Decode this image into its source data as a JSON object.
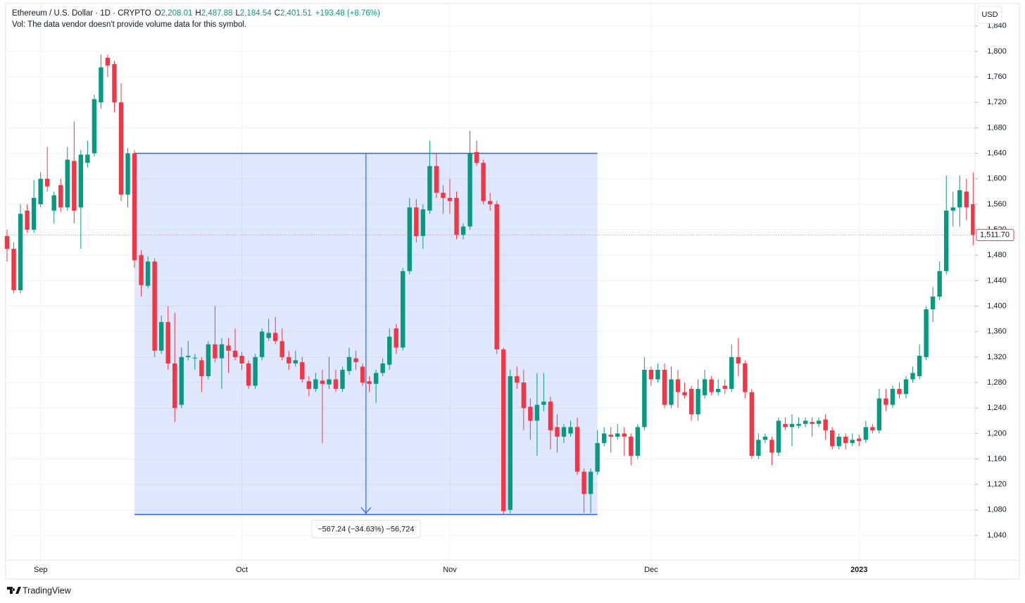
{
  "chart_data": {
    "type": "candlestick",
    "legend": {
      "symbol": "Ethereum / U.S. Dollar · 1D · CRYPTO",
      "o_label": "O",
      "o_value": "2,208.01",
      "h_label": "H",
      "h_value": "2,487.88",
      "l_label": "L",
      "l_value": "2,184.54",
      "c_label": "C",
      "c_value": "2,401.51",
      "change": "+193.48 (+8.76%)"
    },
    "volume_note": "Vol: The data vendor doesn't provide volume data for this symbol.",
    "currency": "USD",
    "brand": "TradingView",
    "up_color": "#089981",
    "down_color": "#f23645",
    "grid": true,
    "categories": [
      null,
      null,
      null,
      null,
      null,
      "Sep",
      null,
      null,
      null,
      null,
      null,
      null,
      null,
      null,
      null,
      null,
      null,
      null,
      null,
      null,
      null,
      null,
      null,
      null,
      null,
      null,
      null,
      null,
      null,
      null,
      null,
      null,
      null,
      null,
      null,
      "Oct",
      null,
      null,
      null,
      null,
      null,
      null,
      null,
      null,
      null,
      null,
      null,
      null,
      null,
      null,
      null,
      null,
      null,
      null,
      null,
      null,
      null,
      null,
      null,
      null,
      null,
      null,
      null,
      null,
      null,
      null,
      "Nov",
      null,
      null,
      null,
      null,
      null,
      null,
      null,
      null,
      null,
      null,
      null,
      null,
      null,
      null,
      null,
      null,
      null,
      null,
      null,
      null,
      null,
      null,
      null,
      null,
      null,
      null,
      null,
      null,
      null,
      "Dec",
      null,
      null,
      null,
      null,
      null,
      null,
      null,
      null,
      null,
      null,
      null,
      null,
      null,
      null,
      null,
      null,
      null,
      null,
      null,
      null,
      null,
      null,
      null,
      null,
      null,
      null,
      null,
      null,
      null,
      null,
      "2023",
      null,
      null,
      null,
      null,
      null,
      null,
      null,
      null,
      null,
      null,
      null,
      null,
      null,
      null,
      null,
      null,
      null
    ],
    "open": [
      1510,
      1490,
      1425,
      1550,
      1520,
      1560,
      1600,
      1550,
      1590,
      1555,
      1628,
      1555,
      1625,
      1640,
      1720,
      1790,
      1780,
      1720,
      1575,
      1640,
      1480,
      1432,
      1470,
      1330,
      1375,
      1310,
      1245,
      1320,
      1318,
      1315,
      1290,
      1340,
      1318,
      1338,
      1330,
      1322,
      1310,
      1275,
      1320,
      1350,
      1358,
      1345,
      1320,
      1310,
      1312,
      1282,
      1270,
      1283,
      1277,
      1285,
      1270,
      1298,
      1318,
      1305,
      1282,
      1278,
      1295,
      1308,
      1365,
      1335,
      1455,
      1555,
      1510,
      1550,
      1620,
      1578,
      1570,
      1570,
      1512,
      1525,
      1642,
      1625,
      1565,
      1560,
      1332,
      1080,
      1290,
      1280,
      1242,
      1220,
      1245,
      1250,
      1210,
      1195,
      1200,
      1210,
      1140,
      1105,
      1140,
      1185,
      1198,
      1195,
      1200,
      1195,
      1165,
      1210,
      1300,
      1285,
      1300,
      1245,
      1285,
      1265,
      1270,
      1230,
      1260,
      1285,
      1265,
      1275,
      1270,
      1320,
      1310,
      1265,
      1165,
      1190,
      1190,
      1170,
      1215,
      1210,
      1212,
      1215,
      1218,
      1215,
      1222,
      1205,
      1180,
      1195,
      1185,
      1192,
      1190,
      1210,
      1205,
      1255,
      1245,
      1270,
      1262,
      1285,
      1290,
      1320,
      1395,
      1415,
      1455,
      1550,
      1555,
      1580,
      1560
    ],
    "high": [
      1520,
      1500,
      1560,
      1560,
      1598,
      1610,
      1650,
      1580,
      1600,
      1650,
      1690,
      1645,
      1660,
      1732,
      1795,
      1795,
      1785,
      1750,
      1648,
      1645,
      1488,
      1478,
      1475,
      1385,
      1400,
      1390,
      1335,
      1345,
      1325,
      1320,
      1345,
      1400,
      1350,
      1350,
      1365,
      1328,
      1315,
      1325,
      1365,
      1380,
      1383,
      1365,
      1330,
      1330,
      1320,
      1290,
      1295,
      1300,
      1320,
      1300,
      1305,
      1335,
      1330,
      1310,
      1290,
      1300,
      1318,
      1365,
      1372,
      1460,
      1570,
      1568,
      1560,
      1660,
      1640,
      1590,
      1600,
      1580,
      1530,
      1675,
      1660,
      1630,
      1578,
      1565,
      1335,
      1300,
      1305,
      1300,
      1255,
      1295,
      1295,
      1258,
      1230,
      1215,
      1220,
      1225,
      1145,
      1145,
      1205,
      1210,
      1210,
      1215,
      1210,
      1200,
      1215,
      1320,
      1305,
      1310,
      1310,
      1305,
      1300,
      1280,
      1275,
      1285,
      1300,
      1290,
      1285,
      1285,
      1340,
      1350,
      1315,
      1270,
      1200,
      1200,
      1195,
      1225,
      1225,
      1230,
      1225,
      1225,
      1225,
      1225,
      1230,
      1210,
      1200,
      1200,
      1200,
      1198,
      1220,
      1215,
      1270,
      1270,
      1275,
      1280,
      1290,
      1305,
      1340,
      1400,
      1430,
      1470,
      1605,
      1580,
      1605,
      1600,
      1610
    ],
    "low": [
      1470,
      1420,
      1420,
      1515,
      1515,
      1555,
      1580,
      1530,
      1548,
      1550,
      1530,
      1490,
      1618,
      1635,
      1710,
      1760,
      1705,
      1565,
      1555,
      1460,
      1415,
      1428,
      1320,
      1325,
      1300,
      1218,
      1240,
      1315,
      1300,
      1265,
      1285,
      1312,
      1270,
      1295,
      1315,
      1300,
      1270,
      1270,
      1315,
      1345,
      1340,
      1315,
      1300,
      1305,
      1280,
      1258,
      1265,
      1185,
      1270,
      1265,
      1265,
      1292,
      1300,
      1275,
      1265,
      1248,
      1290,
      1300,
      1325,
      1330,
      1450,
      1500,
      1490,
      1545,
      1570,
      1545,
      1545,
      1505,
      1505,
      1520,
      1620,
      1560,
      1550,
      1325,
      1072,
      1075,
      1270,
      1205,
      1190,
      1165,
      1235,
      1175,
      1170,
      1185,
      1195,
      1135,
      1075,
      1075,
      1135,
      1180,
      1170,
      1190,
      1165,
      1150,
      1160,
      1205,
      1275,
      1280,
      1240,
      1240,
      1240,
      1255,
      1220,
      1220,
      1255,
      1260,
      1260,
      1262,
      1265,
      1290,
      1255,
      1160,
      1160,
      1185,
      1150,
      1165,
      1205,
      1180,
      1208,
      1210,
      1195,
      1210,
      1190,
      1175,
      1175,
      1175,
      1180,
      1180,
      1185,
      1200,
      1200,
      1235,
      1240,
      1255,
      1255,
      1280,
      1285,
      1315,
      1375,
      1410,
      1450,
      1525,
      1525,
      1535,
      1495
    ],
    "close": [
      1490,
      1425,
      1545,
      1520,
      1570,
      1600,
      1588,
      1574,
      1555,
      1630,
      1550,
      1638,
      1638,
      1725,
      1775,
      1778,
      1720,
      1575,
      1640,
      1472,
      1433,
      1470,
      1330,
      1375,
      1310,
      1240,
      1320,
      1322,
      1319,
      1290,
      1340,
      1318,
      1340,
      1330,
      1320,
      1310,
      1275,
      1320,
      1360,
      1358,
      1345,
      1320,
      1310,
      1315,
      1285,
      1270,
      1285,
      1278,
      1285,
      1270,
      1300,
      1320,
      1312,
      1280,
      1278,
      1295,
      1310,
      1352,
      1335,
      1455,
      1555,
      1510,
      1552,
      1620,
      1578,
      1570,
      1565,
      1512,
      1525,
      1640,
      1625,
      1565,
      1560,
      1332,
      1078,
      1290,
      1280,
      1240,
      1220,
      1245,
      1250,
      1205,
      1195,
      1210,
      1210,
      1140,
      1105,
      1140,
      1185,
      1200,
      1195,
      1200,
      1195,
      1165,
      1210,
      1300,
      1285,
      1300,
      1245,
      1285,
      1265,
      1260,
      1230,
      1270,
      1285,
      1265,
      1270,
      1270,
      1320,
      1310,
      1265,
      1165,
      1190,
      1195,
      1170,
      1220,
      1210,
      1215,
      1215,
      1220,
      1215,
      1220,
      1205,
      1180,
      1195,
      1185,
      1190,
      1188,
      1210,
      1205,
      1255,
      1245,
      1270,
      1262,
      1285,
      1295,
      1322,
      1395,
      1415,
      1455,
      1550,
      1555,
      1582,
      1555,
      1511.7
    ],
    "ylim": [
      1006.8,
      1875.2
    ],
    "yticks": [
      {
        "value": 1040,
        "label": "1,040"
      },
      {
        "value": 1080,
        "label": "1,080"
      },
      {
        "value": 1120,
        "label": "1,120"
      },
      {
        "value": 1160,
        "label": "1,160"
      },
      {
        "value": 1200,
        "label": "1,200"
      },
      {
        "value": 1240,
        "label": "1,240"
      },
      {
        "value": 1280,
        "label": "1,280"
      },
      {
        "value": 1320,
        "label": "1,320"
      },
      {
        "value": 1360,
        "label": "1,360"
      },
      {
        "value": 1400,
        "label": "1,400"
      },
      {
        "value": 1440,
        "label": "1,440"
      },
      {
        "value": 1480,
        "label": "1,480"
      },
      {
        "value": 1520,
        "label": "1,520"
      },
      {
        "value": 1560,
        "label": "1,560"
      },
      {
        "value": 1600,
        "label": "1,600"
      },
      {
        "value": 1640,
        "label": "1,640"
      },
      {
        "value": 1680,
        "label": "1,680"
      },
      {
        "value": 1720,
        "label": "1,720"
      },
      {
        "value": 1760,
        "label": "1,760"
      },
      {
        "value": 1800,
        "label": "1,800"
      },
      {
        "value": 1840,
        "label": "1,840"
      }
    ],
    "last_price": {
      "value": 1511.7,
      "label": "1,511.70"
    },
    "measure": {
      "start": 19,
      "end": 88,
      "top": 1640,
      "bottom": 1072.76,
      "label": "−567.24 (−34.63%) −56,724"
    }
  }
}
